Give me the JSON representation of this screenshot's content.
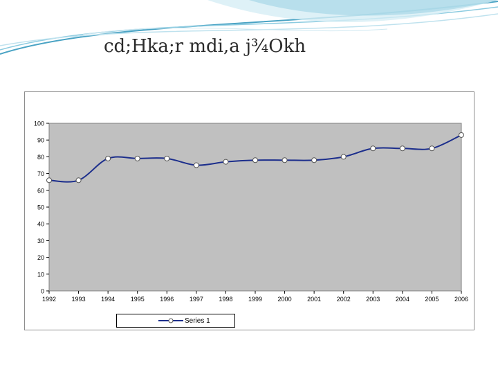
{
  "slide": {
    "title": "cd;Hka;r mdi,a j¾Okh",
    "colors": {
      "wave_dark": "#4aa3c4",
      "wave_light": "#bfe2ee",
      "title": "#2b2b2b"
    }
  },
  "chart_data": {
    "type": "line",
    "title": "",
    "xlabel": "",
    "ylabel": "",
    "x": [
      "1992",
      "1993",
      "1994",
      "1995",
      "1996",
      "1997",
      "1998",
      "1999",
      "2000",
      "2001",
      "2002",
      "2003",
      "2004",
      "2005",
      "2006"
    ],
    "series": [
      {
        "name": "Series 1",
        "values": [
          66,
          66,
          79,
          79,
          79,
          75,
          77,
          78,
          78,
          78,
          80,
          85,
          85,
          85,
          93
        ],
        "color": "#1c2e8c"
      }
    ],
    "ylim": [
      0,
      100
    ],
    "yticks": [
      "0",
      "10",
      "20",
      "30",
      "40",
      "50",
      "60",
      "70",
      "80",
      "90",
      "100"
    ],
    "grid": false,
    "plot_background": "#c0c0c0",
    "legend_position": "bottom"
  }
}
